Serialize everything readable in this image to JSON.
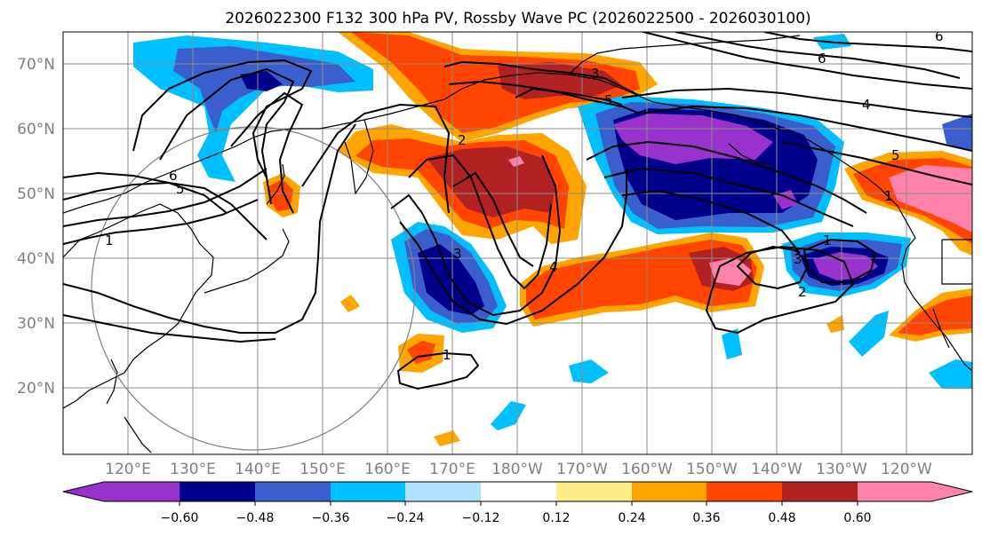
{
  "title": "2026022300 F132 300 hPa PV, Rossby Wave PC (2026022500 - 2026030100)",
  "lat_labels": [
    "70°N",
    "60°N",
    "50°N",
    "40°N",
    "30°N",
    "20°N"
  ],
  "lon_labels": [
    "120°E",
    "130°E",
    "140°E",
    "150°E",
    "160°E",
    "170°E",
    "180°W",
    "170°W",
    "160°W",
    "150°W",
    "140°W",
    "130°W",
    "120°W"
  ],
  "colorbar": {
    "ticks": [
      "−0.60",
      "−0.48",
      "−0.36",
      "−0.24",
      "−0.12",
      "0.12",
      "0.24",
      "0.36",
      "0.48",
      "0.60"
    ],
    "colors": [
      "#9932cc",
      "#00008b",
      "#3a5fcd",
      "#00bfff",
      "#b0e2ff",
      "#ffffff",
      "#ffec8b",
      "#ffa500",
      "#ff4500",
      "#b22222",
      "#ff82ab"
    ]
  },
  "contour_labels": [
    "1",
    "1",
    "1",
    "2",
    "2",
    "3",
    "3",
    "3",
    "4",
    "4",
    "5",
    "5",
    "5",
    "6",
    "6",
    "6",
    "1"
  ]
}
